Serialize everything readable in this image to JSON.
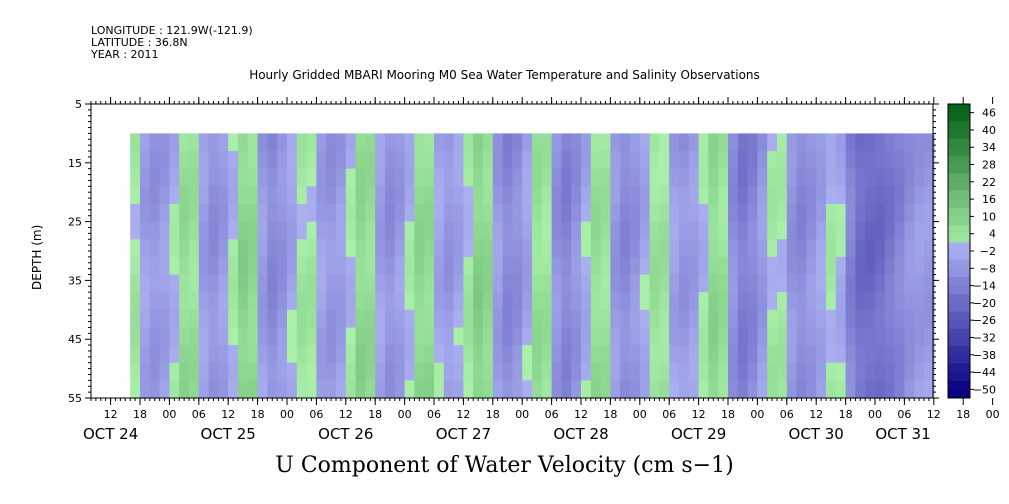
{
  "header": {
    "longitude": "LONGITUDE : 121.9W(-121.9)",
    "latitude": "LATITUDE : 36.8N",
    "year": "YEAR : 2011"
  },
  "chart_data": {
    "type": "heatmap",
    "title": "Hourly Gridded MBARI Mooring M0 Sea Water Temperature and Salinity Observations",
    "xlabel": "U Component of Water Velocity (cm s−1)",
    "ylabel": "DEPTH (m)",
    "ylim": [
      5,
      55
    ],
    "y_inverted": true,
    "yticks": [
      5,
      15,
      25,
      35,
      45,
      55
    ],
    "x_hour_ticks": [
      "12",
      "18",
      "00",
      "06",
      "12",
      "18",
      "00",
      "06",
      "12",
      "18",
      "00",
      "06",
      "12",
      "18",
      "00",
      "06",
      "12",
      "18",
      "00",
      "06",
      "12",
      "18",
      "00",
      "06",
      "12",
      "18",
      "00",
      "06",
      "12",
      "18",
      "00",
      "06"
    ],
    "x_day_labels": [
      "OCT 24",
      "OCT 25",
      "OCT 26",
      "OCT 27",
      "OCT 28",
      "OCT 29",
      "OCT 30",
      "OCT 31"
    ],
    "data_depth_range": [
      10,
      55
    ],
    "colorbar": {
      "labels": [
        "46",
        "40",
        "34",
        "28",
        "22",
        "16",
        "10",
        "4",
        "−2",
        "−8",
        "−14",
        "−20",
        "−26",
        "−32",
        "−38",
        "−44",
        "−50"
      ],
      "min": -50,
      "max": 50,
      "step": 3
    },
    "velocity_time_series": [
      {
        "time": "OCT 24 16",
        "u": 6
      },
      {
        "time": "OCT 24 20",
        "u": -8
      },
      {
        "time": "OCT 25 00",
        "u": -4
      },
      {
        "time": "OCT 25 04",
        "u": 10
      },
      {
        "time": "OCT 25 08",
        "u": -10
      },
      {
        "time": "OCT 25 12",
        "u": -4
      },
      {
        "time": "OCT 25 16",
        "u": 14
      },
      {
        "time": "OCT 25 20",
        "u": -12
      },
      {
        "time": "OCT 26 00",
        "u": -6
      },
      {
        "time": "OCT 26 04",
        "u": 6
      },
      {
        "time": "OCT 26 08",
        "u": -8
      },
      {
        "time": "OCT 26 12",
        "u": -4
      },
      {
        "time": "OCT 26 16",
        "u": 12
      },
      {
        "time": "OCT 26 20",
        "u": -10
      },
      {
        "time": "OCT 27 00",
        "u": -4
      },
      {
        "time": "OCT 27 04",
        "u": 12
      },
      {
        "time": "OCT 27 08",
        "u": -8
      },
      {
        "time": "OCT 27 12",
        "u": -2
      },
      {
        "time": "OCT 27 16",
        "u": 14
      },
      {
        "time": "OCT 27 20",
        "u": -12
      },
      {
        "time": "OCT 28 00",
        "u": -8
      },
      {
        "time": "OCT 28 04",
        "u": 10
      },
      {
        "time": "OCT 28 08",
        "u": -14
      },
      {
        "time": "OCT 28 12",
        "u": -6
      },
      {
        "time": "OCT 28 16",
        "u": 10
      },
      {
        "time": "OCT 28 20",
        "u": -12
      },
      {
        "time": "OCT 29 00",
        "u": -6
      },
      {
        "time": "OCT 29 04",
        "u": 8
      },
      {
        "time": "OCT 29 08",
        "u": -8
      },
      {
        "time": "OCT 29 12",
        "u": -4
      },
      {
        "time": "OCT 29 16",
        "u": 12
      },
      {
        "time": "OCT 29 20",
        "u": -16
      },
      {
        "time": "OCT 30 00",
        "u": -10
      },
      {
        "time": "OCT 30 04",
        "u": 6
      },
      {
        "time": "OCT 30 08",
        "u": -12
      },
      {
        "time": "OCT 30 12",
        "u": -6
      },
      {
        "time": "OCT 30 16",
        "u": 4
      },
      {
        "time": "OCT 30 20",
        "u": -18
      },
      {
        "time": "OCT 31 00",
        "u": -20
      },
      {
        "time": "OCT 31 04",
        "u": -14
      },
      {
        "time": "OCT 31 08",
        "u": -6
      }
    ]
  }
}
